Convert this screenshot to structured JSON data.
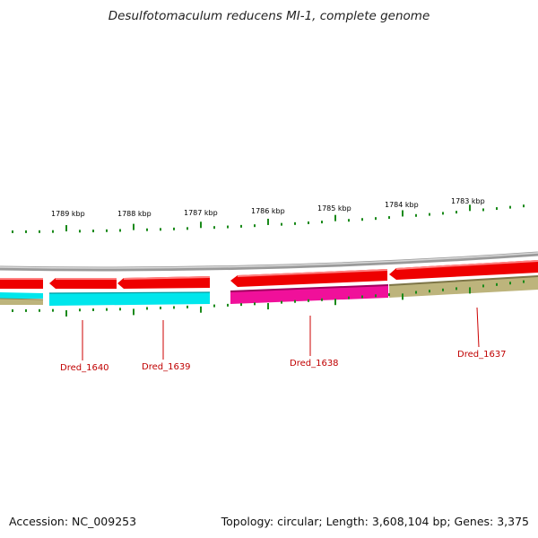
{
  "title": "Desulfotomaculum reducens MI-1, complete genome",
  "accession": "Accession: NC_009253",
  "stats": "Topology: circular; Length: 3,608,104 bp; Genes: 3,375",
  "coordinate_labels": [
    "1789 kbp",
    "1788 kbp",
    "1787 kbp",
    "1786 kbp",
    "1785 kbp",
    "1784 kbp",
    "1783 kbp"
  ],
  "genes": [
    {
      "name": "Dred_1640",
      "strand": "reverse",
      "track_color": "#00e6ec"
    },
    {
      "name": "Dred_1639",
      "strand": "reverse",
      "track_color": "#00e6ec"
    },
    {
      "name": "Dred_1638",
      "strand": "reverse",
      "track_color": "#f0109a"
    },
    {
      "name": "Dred_1637",
      "strand": "reverse",
      "track_color": "#bdb47c"
    }
  ],
  "colors": {
    "backbone": "#888888",
    "cds": "#ee0000",
    "tick": "#1a8a1a",
    "label": "#cc0000"
  }
}
